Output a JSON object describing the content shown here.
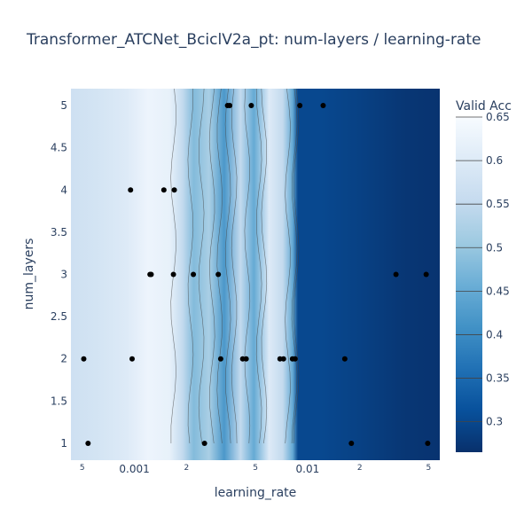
{
  "chart_data": {
    "type": "contour",
    "title": "Transformer_ATCNet_BciclV2a_pt: num-layers / learning-rate",
    "xlabel": "learning_rate",
    "ylabel": "num_layers",
    "xscale": "log",
    "xlim": [
      0.00043,
      0.058
    ],
    "ylim": [
      0.8,
      5.2
    ],
    "y_ticks": [
      "1",
      "1.5",
      "2",
      "2.5",
      "3",
      "3.5",
      "4",
      "4.5",
      "5"
    ],
    "x_ticks": [
      {
        "value": 0.0005,
        "label": "5",
        "major": false
      },
      {
        "value": 0.001,
        "label": "0.001",
        "major": true
      },
      {
        "value": 0.002,
        "label": "2",
        "major": false
      },
      {
        "value": 0.005,
        "label": "5",
        "major": false
      },
      {
        "value": 0.01,
        "label": "0.01",
        "major": true
      },
      {
        "value": 0.02,
        "label": "2",
        "major": false
      },
      {
        "value": 0.05,
        "label": "5",
        "major": false
      }
    ],
    "colorbar": {
      "title": "Valid Acc",
      "range": [
        0.265,
        0.65
      ],
      "ticks": [
        "0.3",
        "0.35",
        "0.4",
        "0.45",
        "0.5",
        "0.55",
        "0.6",
        "0.65"
      ],
      "colorscale": [
        "#08306b",
        "#08519c",
        "#2171b5",
        "#4292c6",
        "#6baed6",
        "#9ecae1",
        "#c6dbef",
        "#deebf7",
        "#f7fbff"
      ]
    },
    "trials": [
      {
        "learning_rate": 0.00051,
        "num_layers": 2
      },
      {
        "learning_rate": 0.00054,
        "num_layers": 1
      },
      {
        "learning_rate": 0.00095,
        "num_layers": 4
      },
      {
        "learning_rate": 0.00097,
        "num_layers": 2
      },
      {
        "learning_rate": 0.00123,
        "num_layers": 3
      },
      {
        "learning_rate": 0.00125,
        "num_layers": 3
      },
      {
        "learning_rate": 0.00148,
        "num_layers": 4
      },
      {
        "learning_rate": 0.0017,
        "num_layers": 4
      },
      {
        "learning_rate": 0.00168,
        "num_layers": 3
      },
      {
        "learning_rate": 0.00219,
        "num_layers": 3
      },
      {
        "learning_rate": 0.00254,
        "num_layers": 1
      },
      {
        "learning_rate": 0.00305,
        "num_layers": 3
      },
      {
        "learning_rate": 0.00315,
        "num_layers": 2
      },
      {
        "learning_rate": 0.00345,
        "num_layers": 5
      },
      {
        "learning_rate": 0.00355,
        "num_layers": 5
      },
      {
        "learning_rate": 0.00422,
        "num_layers": 2
      },
      {
        "learning_rate": 0.00442,
        "num_layers": 2
      },
      {
        "learning_rate": 0.00473,
        "num_layers": 5
      },
      {
        "learning_rate": 0.00693,
        "num_layers": 2
      },
      {
        "learning_rate": 0.00726,
        "num_layers": 2
      },
      {
        "learning_rate": 0.00818,
        "num_layers": 2
      },
      {
        "learning_rate": 0.00847,
        "num_layers": 2
      },
      {
        "learning_rate": 0.00902,
        "num_layers": 5
      },
      {
        "learning_rate": 0.0123,
        "num_layers": 5
      },
      {
        "learning_rate": 0.0164,
        "num_layers": 2
      },
      {
        "learning_rate": 0.0179,
        "num_layers": 1
      },
      {
        "learning_rate": 0.0324,
        "num_layers": 3
      },
      {
        "learning_rate": 0.0484,
        "num_layers": 3
      },
      {
        "learning_rate": 0.0494,
        "num_layers": 1
      }
    ],
    "accuracy_by_learning_rate": [
      {
        "learning_rate": 0.00043,
        "valid_acc": 0.57
      },
      {
        "learning_rate": 0.0006,
        "valid_acc": 0.58
      },
      {
        "learning_rate": 0.0009,
        "valid_acc": 0.6
      },
      {
        "learning_rate": 0.0012,
        "valid_acc": 0.63
      },
      {
        "learning_rate": 0.0016,
        "valid_acc": 0.62
      },
      {
        "learning_rate": 0.0019,
        "valid_acc": 0.55
      },
      {
        "learning_rate": 0.0022,
        "valid_acc": 0.48
      },
      {
        "learning_rate": 0.0027,
        "valid_acc": 0.52
      },
      {
        "learning_rate": 0.0033,
        "valid_acc": 0.42
      },
      {
        "learning_rate": 0.0041,
        "valid_acc": 0.55
      },
      {
        "learning_rate": 0.0049,
        "valid_acc": 0.45
      },
      {
        "learning_rate": 0.006,
        "valid_acc": 0.6
      },
      {
        "learning_rate": 0.0072,
        "valid_acc": 0.55
      },
      {
        "learning_rate": 0.0082,
        "valid_acc": 0.45
      },
      {
        "learning_rate": 0.0088,
        "valid_acc": 0.3
      },
      {
        "learning_rate": 0.012,
        "valid_acc": 0.3
      },
      {
        "learning_rate": 0.02,
        "valid_acc": 0.29
      },
      {
        "learning_rate": 0.035,
        "valid_acc": 0.275
      },
      {
        "learning_rate": 0.058,
        "valid_acc": 0.27
      }
    ],
    "legend": "colorbar right",
    "grid": false
  }
}
